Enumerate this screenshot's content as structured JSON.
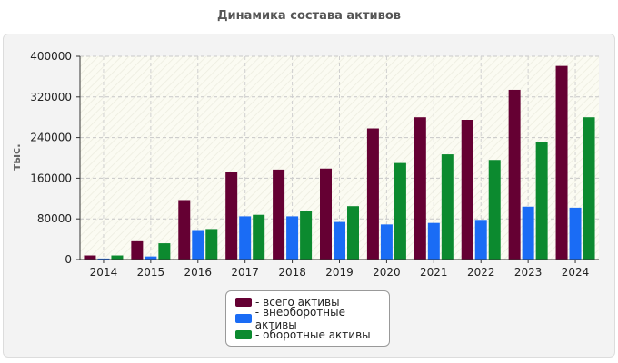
{
  "chart_data": {
    "type": "bar",
    "title": "Динамика состава активов",
    "ylabel": "тыс.",
    "xlabel": "",
    "ylim": [
      0,
      400000
    ],
    "yticks": [
      0,
      80000,
      160000,
      240000,
      320000,
      400000
    ],
    "categories": [
      "2014",
      "2015",
      "2016",
      "2017",
      "2018",
      "2019",
      "2020",
      "2021",
      "2022",
      "2023",
      "2024"
    ],
    "series": [
      {
        "name": "- всего активы",
        "color": "#650033",
        "values": [
          8000,
          36000,
          117000,
          172000,
          177000,
          179000,
          258000,
          280000,
          275000,
          334000,
          381000
        ]
      },
      {
        "name": "- внеоборотные активы",
        "color": "#1a6cf5",
        "values": [
          2000,
          6000,
          58000,
          85000,
          85000,
          74000,
          69000,
          72000,
          78000,
          104000,
          102000
        ]
      },
      {
        "name": "- оборотные активы",
        "color": "#0c8a2f",
        "values": [
          8000,
          32000,
          60000,
          88000,
          95000,
          105000,
          190000,
          207000,
          196000,
          232000,
          280000
        ]
      }
    ],
    "grid": true,
    "legend_position": "bottom-center"
  }
}
